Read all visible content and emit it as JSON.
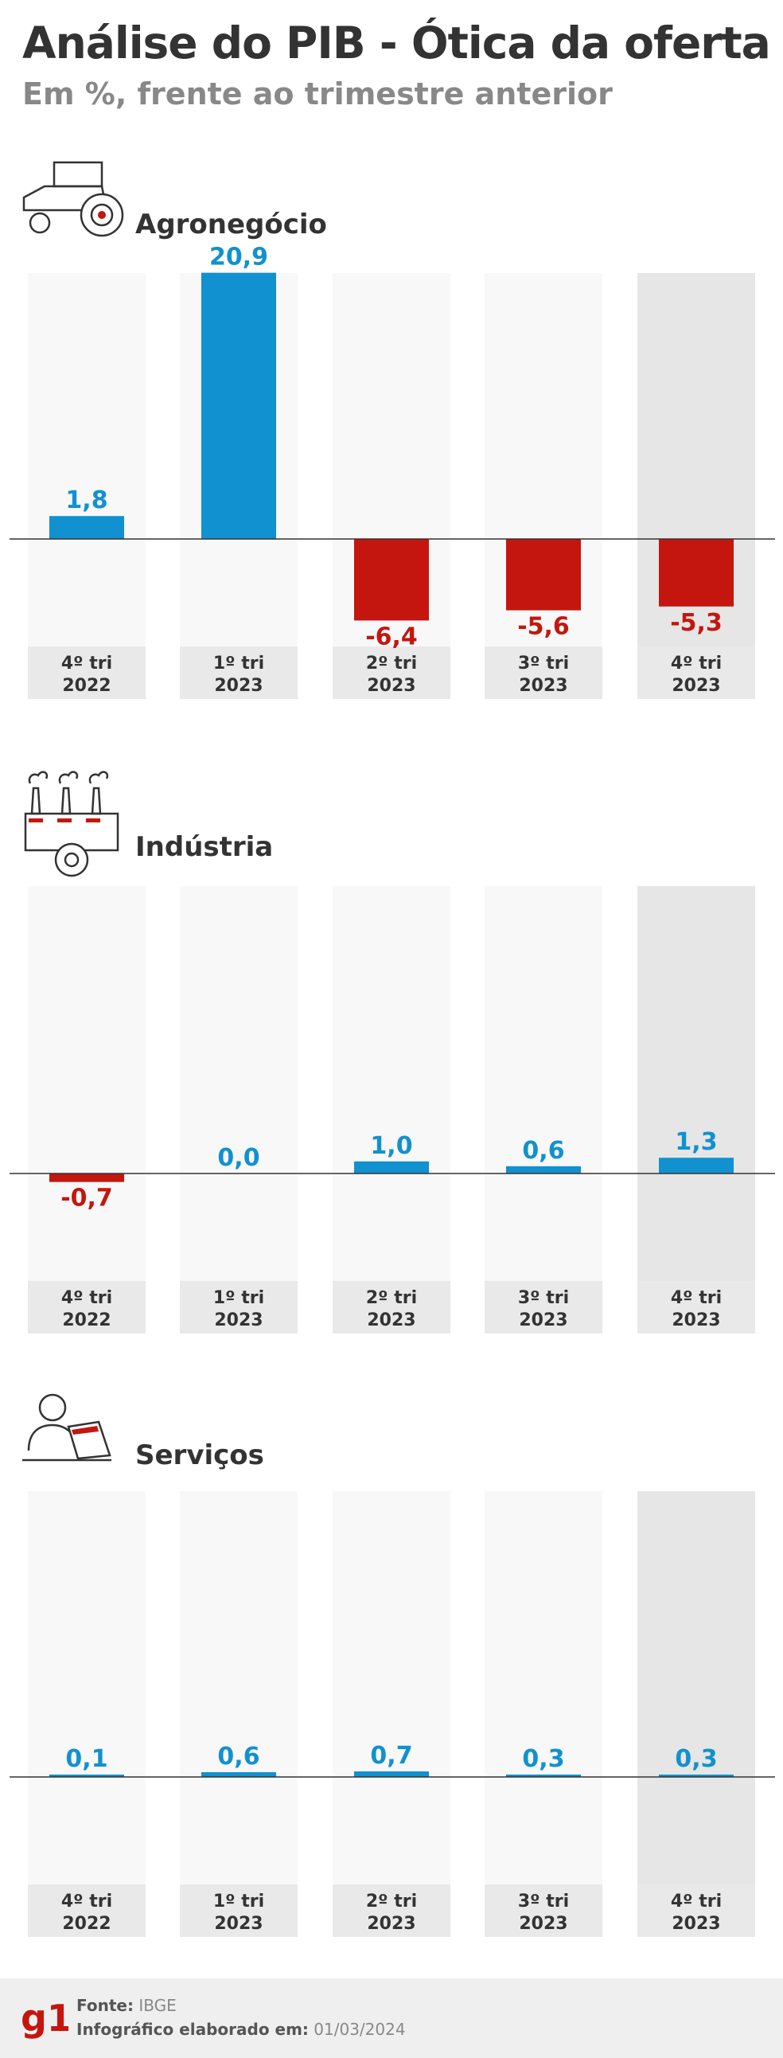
{
  "title": "Análise do PIB - Ótica da oferta",
  "subtitle": "Em %, frente ao trimestre anterior",
  "colors": {
    "positive": "#1191cf",
    "negative": "#c4160e",
    "column_bg": "#f8f8f9",
    "column_bg_last": "#e6e6e6",
    "label_bg": "#e9e9ea",
    "axis": "#333333"
  },
  "quarters": [
    {
      "line1": "4º tri",
      "line2": "2022"
    },
    {
      "line1": "1º tri",
      "line2": "2023"
    },
    {
      "line1": "2º tri",
      "line2": "2023"
    },
    {
      "line1": "3º tri",
      "line2": "2023"
    },
    {
      "line1": "4º tri",
      "line2": "2023"
    }
  ],
  "sections": [
    {
      "title": "Agronegócio",
      "icon": "tractor-icon"
    },
    {
      "title": "Indústria",
      "icon": "factory-icon"
    },
    {
      "title": "Serviços",
      "icon": "person-laptop-icon"
    }
  ],
  "chart_data": [
    {
      "type": "bar",
      "title": "Agronegócio",
      "categories": [
        "4º tri 2022",
        "1º tri 2023",
        "2º tri 2023",
        "3º tri 2023",
        "4º tri 2023"
      ],
      "values": [
        1.8,
        20.9,
        -6.4,
        -5.6,
        -5.3
      ],
      "value_labels": [
        "1,8",
        "20,9",
        "-6,4",
        "-5,6",
        "-5,3"
      ]
    },
    {
      "type": "bar",
      "title": "Indústria",
      "categories": [
        "4º tri 2022",
        "1º tri 2023",
        "2º tri 2023",
        "3º tri 2023",
        "4º tri 2023"
      ],
      "values": [
        -0.7,
        0.0,
        1.0,
        0.6,
        1.3
      ],
      "value_labels": [
        "-0,7",
        "0,0",
        "1,0",
        "0,6",
        "1,3"
      ]
    },
    {
      "type": "bar",
      "title": "Serviços",
      "categories": [
        "4º tri 2022",
        "1º tri 2023",
        "2º tri 2023",
        "3º tri 2023",
        "4º tri 2023"
      ],
      "values": [
        0.1,
        0.6,
        0.7,
        0.3,
        0.3
      ],
      "value_labels": [
        "0,1",
        "0,6",
        "0,7",
        "0,3",
        "0,3"
      ]
    }
  ],
  "footer": {
    "logo": "g1",
    "source_label": "Fonte:",
    "source_value": "IBGE",
    "date_label": "Infográfico elaborado em:",
    "date_value": "01/03/2024"
  }
}
